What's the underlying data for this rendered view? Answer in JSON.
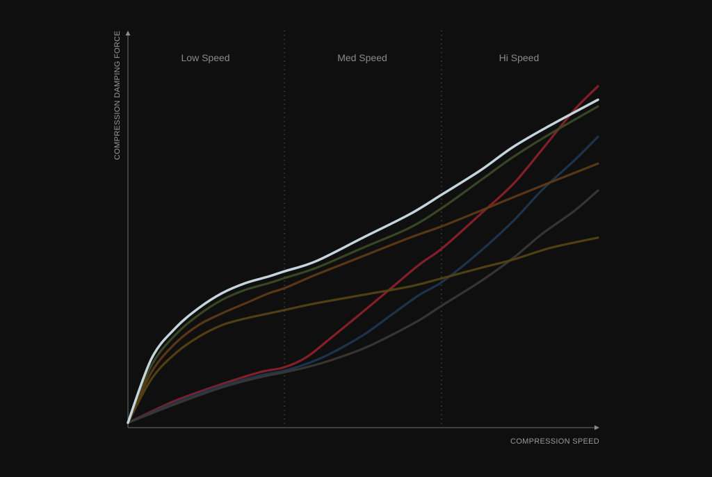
{
  "chart_data": {
    "type": "line",
    "xlabel": "COMPRESSION SPEED",
    "ylabel": "COMPRESSION DAMPING FORCE",
    "xlim": [
      0,
      100
    ],
    "ylim": [
      0,
      100
    ],
    "grid": false,
    "zones": [
      {
        "label": "Low Speed",
        "start": 0,
        "end": 33.3
      },
      {
        "label": "Med Speed",
        "start": 33.3,
        "end": 66.7
      },
      {
        "label": "Hi Speed",
        "start": 66.7,
        "end": 100
      }
    ],
    "series": [
      {
        "color": "#8e1f2a",
        "x": [
          0,
          10,
          20,
          28,
          33.3,
          38,
          43,
          50,
          56,
          62,
          67,
          75,
          82,
          88,
          95,
          100
        ],
        "y": [
          0,
          6.5,
          11.5,
          15,
          16.5,
          19.5,
          25,
          33,
          40,
          47,
          52,
          62,
          71,
          81,
          93,
          100
        ]
      },
      {
        "color": "#c5d5dc",
        "highlight": true,
        "x": [
          0,
          5,
          10,
          15,
          20,
          25,
          30,
          33.3,
          40,
          50,
          60,
          67,
          75,
          82,
          90,
          100
        ],
        "y": [
          0,
          19,
          28,
          34,
          38.5,
          41.5,
          43.5,
          45,
          48,
          55,
          62,
          68,
          75,
          82,
          88.5,
          96
        ]
      },
      {
        "color": "#3d4b25",
        "x": [
          0,
          5,
          10,
          15,
          20,
          25,
          30,
          33.3,
          40,
          50,
          60,
          67,
          75,
          82,
          90,
          100
        ],
        "y": [
          0,
          17,
          26,
          32,
          36.5,
          39.5,
          41.5,
          43,
          46,
          52,
          58,
          64,
          72,
          79,
          86,
          94
        ]
      },
      {
        "color": "#1e3650",
        "x": [
          0,
          10,
          20,
          28,
          33.3,
          38,
          43,
          50,
          56,
          62,
          67,
          75,
          82,
          88,
          95,
          100
        ],
        "y": [
          0,
          6,
          11,
          14,
          15.5,
          17.5,
          20.5,
          26,
          32,
          38,
          42,
          51,
          60,
          69,
          78,
          85
        ]
      },
      {
        "color": "#5e3b17",
        "x": [
          0,
          5,
          10,
          15,
          20,
          25,
          30,
          33.3,
          40,
          50,
          60,
          67,
          75,
          82,
          90,
          100
        ],
        "y": [
          0,
          15,
          23.5,
          29,
          32.5,
          35.5,
          38.5,
          40,
          44,
          49.5,
          55,
          58.5,
          63,
          67,
          71.5,
          77
        ]
      },
      {
        "color": "#3a3835",
        "x": [
          0,
          10,
          20,
          28,
          33.3,
          38,
          43,
          50,
          56,
          62,
          67,
          75,
          82,
          88,
          95,
          100
        ],
        "y": [
          0,
          5.5,
          10.5,
          13.5,
          15,
          16.5,
          18.5,
          22,
          26,
          30.5,
          35,
          42,
          49,
          56,
          63,
          69
        ]
      },
      {
        "color": "#564314",
        "x": [
          0,
          5,
          10,
          15,
          20,
          25,
          30,
          33.3,
          40,
          50,
          60,
          67,
          75,
          82,
          90,
          100
        ],
        "y": [
          0,
          13,
          20.5,
          25.5,
          29,
          31,
          32.5,
          33.5,
          35.5,
          38,
          40.5,
          43,
          46,
          48.5,
          52,
          55
        ]
      }
    ]
  }
}
